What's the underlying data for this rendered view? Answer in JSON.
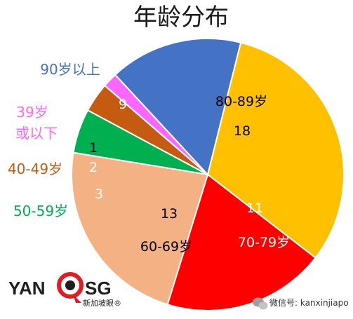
{
  "chart_data": {
    "type": "pie",
    "title": "年龄分布",
    "slices": [
      {
        "label": "80-89岁",
        "value": 18,
        "color": "#FFC000"
      },
      {
        "label": "70-79岁",
        "value": 11,
        "color": "#FF0000"
      },
      {
        "label": "60-69岁",
        "value": 13,
        "color": "#F4B183"
      },
      {
        "label": "50-59岁",
        "value": 3,
        "color": "#00B050"
      },
      {
        "label": "40-49岁",
        "value": 2,
        "color": "#C55A11"
      },
      {
        "label": "39岁或以下",
        "value": 1,
        "color": "#FF66FF"
      },
      {
        "label": "90岁以上",
        "value": 9,
        "color": "#4472C4"
      }
    ],
    "category_labels": {
      "s90": "90岁以上",
      "s39_line1": "39岁",
      "s39_line2": "或以下",
      "s40": "40-49岁",
      "s50": "50-59岁",
      "s60": "60-69岁",
      "s70": "70-79岁",
      "s80": "80-89岁"
    },
    "value_labels": {
      "s80": "18",
      "s70": "11",
      "s60": "13",
      "s50": "3",
      "s40": "2",
      "s39": "1",
      "s90": "9"
    },
    "label_colors": {
      "s90": "#4472C4",
      "s39": "#FF66FF",
      "s40": "#C55A11",
      "s50": "#00B050"
    }
  },
  "logo": {
    "left_text": "YAN",
    "right_text": "SG",
    "subtitle": "新加坡眼®"
  },
  "watermark": {
    "text": "微信号: kanxinjiapo"
  }
}
